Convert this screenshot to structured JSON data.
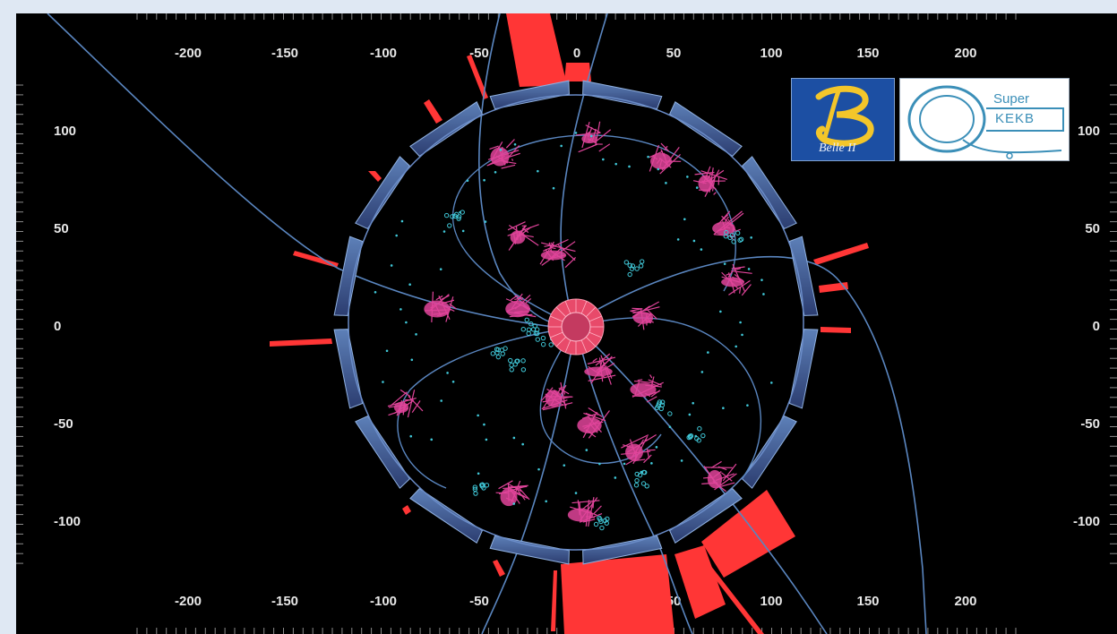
{
  "axes": {
    "x_ticks": [
      "-200",
      "-150",
      "-100",
      "-50",
      "0",
      "50",
      "100",
      "150",
      "200"
    ],
    "y_ticks": [
      "100",
      "50",
      "0",
      "-50",
      "-100"
    ]
  },
  "logos": {
    "belle": {
      "name": "belle-ii-logo",
      "caption": "Belle II"
    },
    "superkekb": {
      "name": "superkekb-logo",
      "line1": "Super",
      "line2": "KEKB"
    }
  },
  "colors": {
    "background": "#000000",
    "frame": "#dfe8f3",
    "track": "#5a86c0",
    "calorimeter": "#ff3636",
    "hits_pink": "#e0449a",
    "hits_cyan": "#40c8d8",
    "barrel": "#3f5f96"
  }
}
